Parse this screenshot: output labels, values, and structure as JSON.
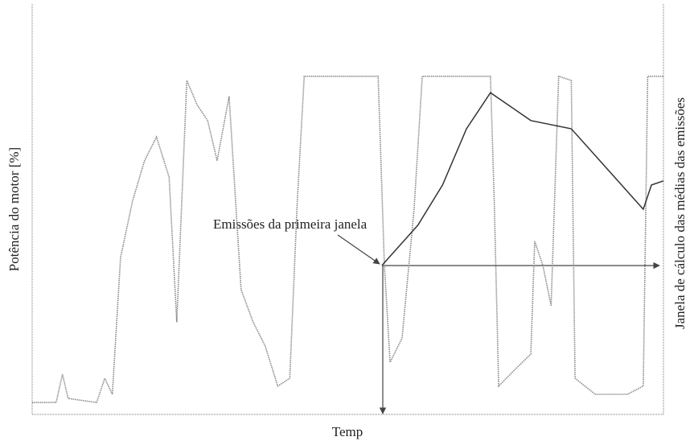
{
  "chart_data": {
    "type": "line",
    "y_label": "Potência do motor [%]",
    "x_label": "Temp",
    "y2_label": "Janela de cálculo das médias das emissões",
    "annotation": "Emissões da primeira janela",
    "xlim": [
      0,
      100
    ],
    "ylim": [
      0,
      100
    ],
    "series": [
      {
        "color": "#8a8a8a",
        "x": [
          0,
          3.8,
          4.8,
          5.7,
          10.2,
          11.5,
          12.7,
          14.0,
          15.9,
          17.8,
          19.7,
          21.7,
          22.9,
          24.5,
          26.1,
          27.8,
          29.3,
          31.2,
          33.1,
          35.0,
          36.9,
          38.9,
          40.8,
          42.0,
          43.1,
          48.4,
          54.8,
          55.8,
          56.7,
          58.6,
          60.5,
          61.8,
          66.2,
          72.6,
          73.2,
          73.9,
          76.4,
          79.0,
          79.6,
          80.9,
          82.2,
          83.4,
          85.4,
          86.0,
          89.2,
          94.3,
          96.8,
          97.5,
          100
        ],
        "values": [
          2.9,
          2.9,
          9.8,
          3.9,
          2.9,
          8.8,
          4.9,
          38.2,
          52.0,
          61.8,
          67.6,
          57.8,
          22.5,
          81.4,
          75.5,
          71.6,
          61.8,
          77.5,
          30.4,
          22.5,
          16.7,
          6.9,
          8.8,
          52.0,
          82.4,
          82.4,
          82.4,
          36.3,
          12.7,
          18.6,
          50.0,
          82.4,
          82.4,
          82.4,
          52.0,
          6.9,
          10.8,
          14.7,
          42.2,
          36.3,
          26.5,
          82.4,
          81.4,
          8.8,
          4.9,
          4.9,
          6.9,
          82.4,
          82.4
        ]
      },
      {
        "color": "#333333",
        "x": [
          55.4,
          61.1,
          65.0,
          68.8,
          72.6,
          79.0,
          85.4,
          96.8,
          98.1,
          100
        ],
        "values": [
          36.3,
          46.1,
          55.9,
          69.6,
          78.4,
          71.6,
          69.6,
          50.0,
          55.9,
          56.9
        ]
      }
    ]
  }
}
